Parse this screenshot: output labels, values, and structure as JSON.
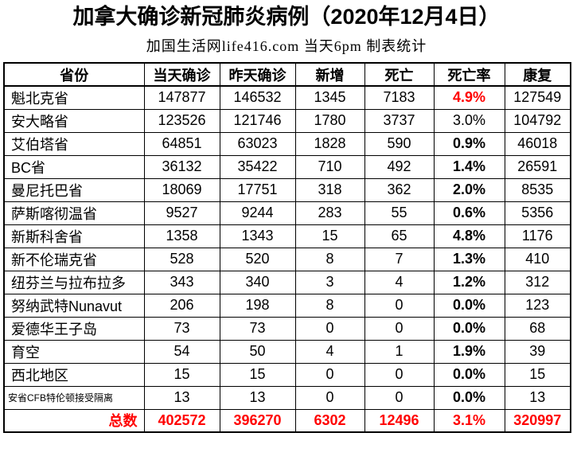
{
  "header": {
    "title": "加拿大确诊新冠肺炎病例（2020年12月4日）",
    "subtitle": "加国生活网life416.com 当天6pm 制表统计"
  },
  "colors": {
    "accent_red": "#ff0000",
    "text": "#000000",
    "border": "#000000"
  },
  "chart_data": {
    "type": "table",
    "title": "加拿大确诊新冠肺炎病例（2020年12月4日）",
    "subtitle": "加国生活网life416.com 当天6pm 制表统计",
    "columns": [
      "省份",
      "当天确诊",
      "昨天确诊",
      "新增",
      "死亡",
      "死亡率",
      "康复"
    ],
    "rows": [
      {
        "province": "魁北克省",
        "today": 147877,
        "yesterday": 146532,
        "new_cases": 1345,
        "deaths": 7183,
        "rate": "4.9%",
        "recovered": 127549,
        "rate_style": "red"
      },
      {
        "province": "安大略省",
        "today": 123526,
        "yesterday": 121746,
        "new_cases": 1780,
        "deaths": 3737,
        "rate": "3.0%",
        "recovered": 104792,
        "rate_style": "normal"
      },
      {
        "province": "艾伯塔省",
        "today": 64851,
        "yesterday": 63023,
        "new_cases": 1828,
        "deaths": 590,
        "rate": "0.9%",
        "recovered": 46018,
        "rate_style": "bold"
      },
      {
        "province": "BC省",
        "today": 36132,
        "yesterday": 35422,
        "new_cases": 710,
        "deaths": 492,
        "rate": "1.4%",
        "recovered": 26591,
        "rate_style": "bold"
      },
      {
        "province": "曼尼托巴省",
        "today": 18069,
        "yesterday": 17751,
        "new_cases": 318,
        "deaths": 362,
        "rate": "2.0%",
        "recovered": 8535,
        "rate_style": "bold"
      },
      {
        "province": "萨斯喀彻温省",
        "today": 9527,
        "yesterday": 9244,
        "new_cases": 283,
        "deaths": 55,
        "rate": "0.6%",
        "recovered": 5356,
        "rate_style": "bold"
      },
      {
        "province": "新斯科舍省",
        "today": 1358,
        "yesterday": 1343,
        "new_cases": 15,
        "deaths": 65,
        "rate": "4.8%",
        "recovered": 1176,
        "rate_style": "bold"
      },
      {
        "province": "新不伦瑞克省",
        "today": 528,
        "yesterday": 520,
        "new_cases": 8,
        "deaths": 7,
        "rate": "1.3%",
        "recovered": 410,
        "rate_style": "bold"
      },
      {
        "province": "纽芬兰与拉布拉多",
        "today": 343,
        "yesterday": 340,
        "new_cases": 3,
        "deaths": 4,
        "rate": "1.2%",
        "recovered": 312,
        "rate_style": "bold"
      },
      {
        "province": "努纳武特Nunavut",
        "today": 206,
        "yesterday": 198,
        "new_cases": 8,
        "deaths": 0,
        "rate": "0.0%",
        "recovered": 123,
        "rate_style": "bold"
      },
      {
        "province": "爱德华王子岛",
        "today": 73,
        "yesterday": 73,
        "new_cases": 0,
        "deaths": 0,
        "rate": "0.0%",
        "recovered": 68,
        "rate_style": "bold"
      },
      {
        "province": "育空",
        "today": 54,
        "yesterday": 50,
        "new_cases": 4,
        "deaths": 1,
        "rate": "1.9%",
        "recovered": 39,
        "rate_style": "bold"
      },
      {
        "province": "西北地区",
        "today": 15,
        "yesterday": 15,
        "new_cases": 0,
        "deaths": 0,
        "rate": "0.0%",
        "recovered": 15,
        "rate_style": "bold"
      },
      {
        "province": "安省CFB特伦顿接受隔离",
        "today": 13,
        "yesterday": 13,
        "new_cases": 0,
        "deaths": 0,
        "rate": "0.0%",
        "recovered": 13,
        "rate_style": "bold",
        "small_label": true
      }
    ],
    "total": {
      "label": "总数",
      "today": 402572,
      "yesterday": 396270,
      "new_cases": 6302,
      "deaths": 12496,
      "rate": "3.1%",
      "recovered": 320997
    }
  }
}
